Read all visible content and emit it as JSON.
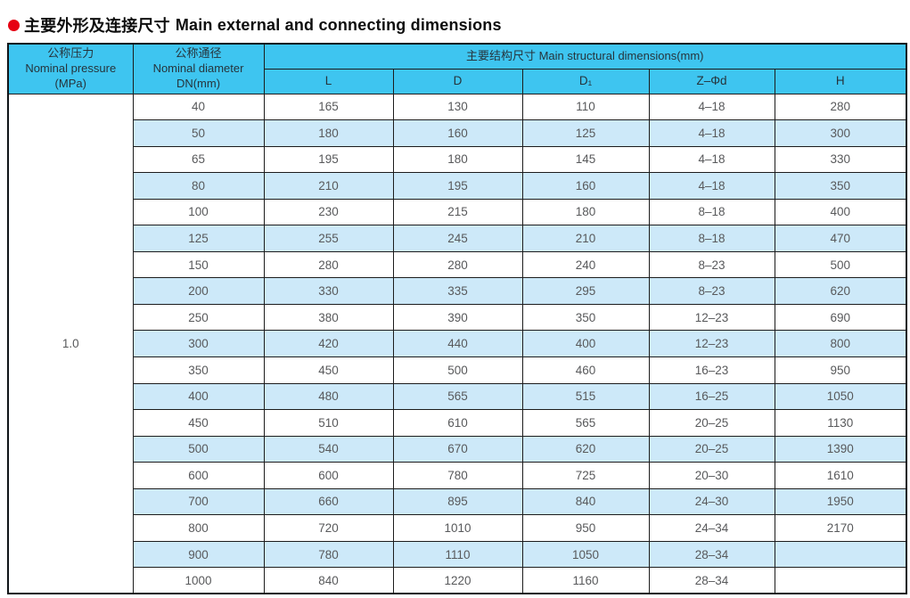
{
  "page": {
    "title_zh": "主要外形及连接尺寸",
    "title_en": "Main external and connecting dimensions"
  },
  "colors": {
    "header-bg": "#3ec5f0",
    "alt-row-bg": "#cde9f9",
    "bullet": "#e60012",
    "border": "#1c1c1c",
    "header-text": "#26343c",
    "data-text": "#58595b"
  },
  "table": {
    "header": {
      "col1_zh": "公称压力",
      "col1_en": "Nominal pressure",
      "col1_unit": "(MPa)",
      "col2_zh": "公称通径",
      "col2_en": "Nominal diameter",
      "col2_unit": "DN(mm)",
      "group_title": "主要结构尺寸 Main structural dimensions(mm)",
      "sub_columns": [
        "L",
        "D",
        "D₁",
        "Z–Φd",
        "H"
      ]
    },
    "pressure_value": "1.0",
    "rows": [
      {
        "dn": "40",
        "l": "165",
        "d": "130",
        "d1": "110",
        "zd": "4–18",
        "h": "280"
      },
      {
        "dn": "50",
        "l": "180",
        "d": "160",
        "d1": "125",
        "zd": "4–18",
        "h": "300"
      },
      {
        "dn": "65",
        "l": "195",
        "d": "180",
        "d1": "145",
        "zd": "4–18",
        "h": "330"
      },
      {
        "dn": "80",
        "l": "210",
        "d": "195",
        "d1": "160",
        "zd": "4–18",
        "h": "350"
      },
      {
        "dn": "100",
        "l": "230",
        "d": "215",
        "d1": "180",
        "zd": "8–18",
        "h": "400"
      },
      {
        "dn": "125",
        "l": "255",
        "d": "245",
        "d1": "210",
        "zd": "8–18",
        "h": "470"
      },
      {
        "dn": "150",
        "l": "280",
        "d": "280",
        "d1": "240",
        "zd": "8–23",
        "h": "500"
      },
      {
        "dn": "200",
        "l": "330",
        "d": "335",
        "d1": "295",
        "zd": "8–23",
        "h": "620"
      },
      {
        "dn": "250",
        "l": "380",
        "d": "390",
        "d1": "350",
        "zd": "12–23",
        "h": "690"
      },
      {
        "dn": "300",
        "l": "420",
        "d": "440",
        "d1": "400",
        "zd": "12–23",
        "h": "800"
      },
      {
        "dn": "350",
        "l": "450",
        "d": "500",
        "d1": "460",
        "zd": "16–23",
        "h": "950"
      },
      {
        "dn": "400",
        "l": "480",
        "d": "565",
        "d1": "515",
        "zd": "16–25",
        "h": "1050"
      },
      {
        "dn": "450",
        "l": "510",
        "d": "610",
        "d1": "565",
        "zd": "20–25",
        "h": "1130"
      },
      {
        "dn": "500",
        "l": "540",
        "d": "670",
        "d1": "620",
        "zd": "20–25",
        "h": "1390"
      },
      {
        "dn": "600",
        "l": "600",
        "d": "780",
        "d1": "725",
        "zd": "20–30",
        "h": "1610"
      },
      {
        "dn": "700",
        "l": "660",
        "d": "895",
        "d1": "840",
        "zd": "24–30",
        "h": "1950"
      },
      {
        "dn": "800",
        "l": "720",
        "d": "1010",
        "d1": "950",
        "zd": "24–34",
        "h": "2170"
      },
      {
        "dn": "900",
        "l": "780",
        "d": "1110",
        "d1": "1050",
        "zd": "28–34",
        "h": ""
      },
      {
        "dn": "1000",
        "l": "840",
        "d": "1220",
        "d1": "1160",
        "zd": "28–34",
        "h": ""
      }
    ]
  }
}
